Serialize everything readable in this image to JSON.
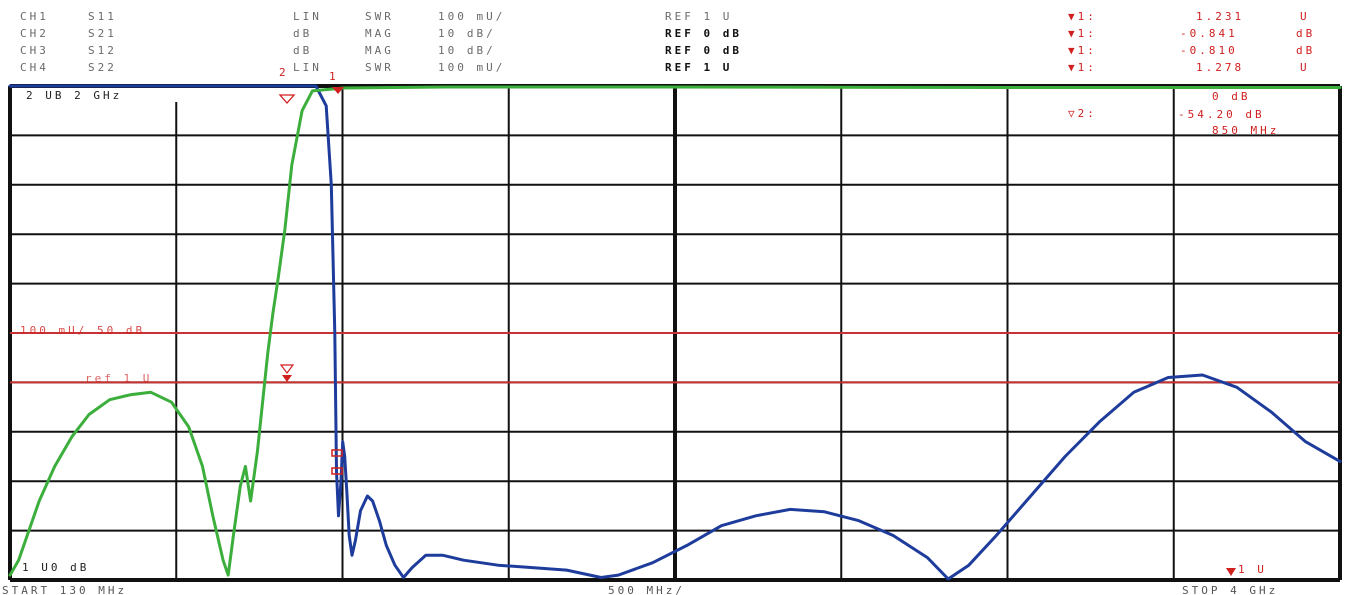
{
  "header": {
    "channels": [
      {
        "ch": "CH1",
        "param": "S11",
        "format": "LIN",
        "mode": "SWR",
        "scale": "100 mU/",
        "ref": "REF 1 U"
      },
      {
        "ch": "CH2",
        "param": "S21",
        "format": "dB",
        "mode": "MAG",
        "scale": "10 dB/",
        "ref": "REF 0 dB"
      },
      {
        "ch": "CH3",
        "param": "S12",
        "format": "dB",
        "mode": "MAG",
        "scale": "10 dB/",
        "ref": "REF 0 dB"
      },
      {
        "ch": "CH4",
        "param": "S22",
        "format": "LIN",
        "mode": "SWR",
        "scale": "100 mU/",
        "ref": "REF 1 U"
      }
    ],
    "markers": [
      {
        "label": "▼1:",
        "value": "1.231",
        "unit": "U"
      },
      {
        "label": "▼1:",
        "value": "-0.841",
        "unit": "dB"
      },
      {
        "label": "▼1:",
        "value": "-0.810",
        "unit": "dB"
      },
      {
        "label": "▼1:",
        "value": "1.278",
        "unit": "U"
      }
    ],
    "delta_marker": {
      "label": "▽2:",
      "line1": "0 dB",
      "line2": "-54.20 dB",
      "line3": "850 MHz"
    }
  },
  "annotations": {
    "top_left": "2 UB 2 GHz",
    "mid_scale": "100 mU/ 50 dB",
    "mid_ref": "ref 1 U",
    "bottom_left": "1 U0 dB",
    "bottom_right": "1 U",
    "start": "START  130 MHz",
    "center": "500 MHz/",
    "stop": "STOP  4 GHz",
    "marker1_tag": "1",
    "marker2_tag": "2"
  },
  "chart_data": {
    "type": "line",
    "title": "",
    "xlabel": "",
    "ylabel": "",
    "x_unit": "MHz",
    "xlim": [
      130,
      4000
    ],
    "grid": true,
    "grid_divisions": {
      "x": 8,
      "y": 10
    },
    "reference_lines": [
      {
        "name": "upper limit",
        "color": "#c83232",
        "y_div": 5.0
      },
      {
        "name": "lower limit",
        "color": "#c83232",
        "y_div": 4.0
      }
    ],
    "series": [
      {
        "color": "#1e3c9c",
        "y_unit": "divisions from bottom",
        "points": [
          [
            130,
            10.0
          ],
          [
            1020,
            10.0
          ],
          [
            1050,
            9.6
          ],
          [
            1065,
            8.0
          ],
          [
            1075,
            5.0
          ],
          [
            1080,
            2.2
          ],
          [
            1086,
            1.3
          ],
          [
            1093,
            2.0
          ],
          [
            1098,
            2.8
          ],
          [
            1104,
            2.5
          ],
          [
            1110,
            1.8
          ],
          [
            1117,
            0.9
          ],
          [
            1125,
            0.5
          ],
          [
            1135,
            0.8
          ],
          [
            1150,
            1.4
          ],
          [
            1170,
            1.7
          ],
          [
            1185,
            1.6
          ],
          [
            1205,
            1.2
          ],
          [
            1225,
            0.7
          ],
          [
            1250,
            0.3
          ],
          [
            1275,
            0.05
          ],
          [
            1300,
            0.25
          ],
          [
            1340,
            0.5
          ],
          [
            1390,
            0.5
          ],
          [
            1450,
            0.4
          ],
          [
            1550,
            0.3
          ],
          [
            1650,
            0.25
          ],
          [
            1750,
            0.2
          ],
          [
            1850,
            0.05
          ],
          [
            1900,
            0.1
          ],
          [
            2000,
            0.35
          ],
          [
            2100,
            0.7
          ],
          [
            2200,
            1.1
          ],
          [
            2300,
            1.3
          ],
          [
            2400,
            1.43
          ],
          [
            2500,
            1.38
          ],
          [
            2600,
            1.2
          ],
          [
            2700,
            0.9
          ],
          [
            2800,
            0.45
          ],
          [
            2860,
            0.02
          ],
          [
            2920,
            0.3
          ],
          [
            3000,
            0.9
          ],
          [
            3100,
            1.7
          ],
          [
            3200,
            2.5
          ],
          [
            3300,
            3.2
          ],
          [
            3400,
            3.8
          ],
          [
            3500,
            4.1
          ],
          [
            3600,
            4.15
          ],
          [
            3700,
            3.9
          ],
          [
            3800,
            3.4
          ],
          [
            3900,
            2.8
          ],
          [
            4000,
            2.4
          ]
        ]
      },
      {
        "color": "#3cae3c",
        "y_unit": "divisions from bottom",
        "points": [
          [
            130,
            0.1
          ],
          [
            155,
            0.4
          ],
          [
            180,
            0.9
          ],
          [
            215,
            1.6
          ],
          [
            260,
            2.3
          ],
          [
            310,
            2.9
          ],
          [
            360,
            3.35
          ],
          [
            420,
            3.65
          ],
          [
            480,
            3.75
          ],
          [
            540,
            3.8
          ],
          [
            600,
            3.6
          ],
          [
            650,
            3.1
          ],
          [
            690,
            2.3
          ],
          [
            720,
            1.3
          ],
          [
            750,
            0.4
          ],
          [
            765,
            0.1
          ],
          [
            780,
            0.9
          ],
          [
            800,
            1.9
          ],
          [
            815,
            2.3
          ],
          [
            830,
            1.6
          ],
          [
            850,
            2.6
          ],
          [
            865,
            3.6
          ],
          [
            880,
            4.6
          ],
          [
            895,
            5.4
          ],
          [
            910,
            6.1
          ],
          [
            930,
            7.1
          ],
          [
            950,
            8.4
          ],
          [
            980,
            9.5
          ],
          [
            1010,
            9.9
          ],
          [
            1100,
            9.96
          ],
          [
            1400,
            9.98
          ],
          [
            2000,
            9.98
          ],
          [
            3000,
            9.97
          ],
          [
            4000,
            9.97
          ]
        ]
      }
    ]
  }
}
